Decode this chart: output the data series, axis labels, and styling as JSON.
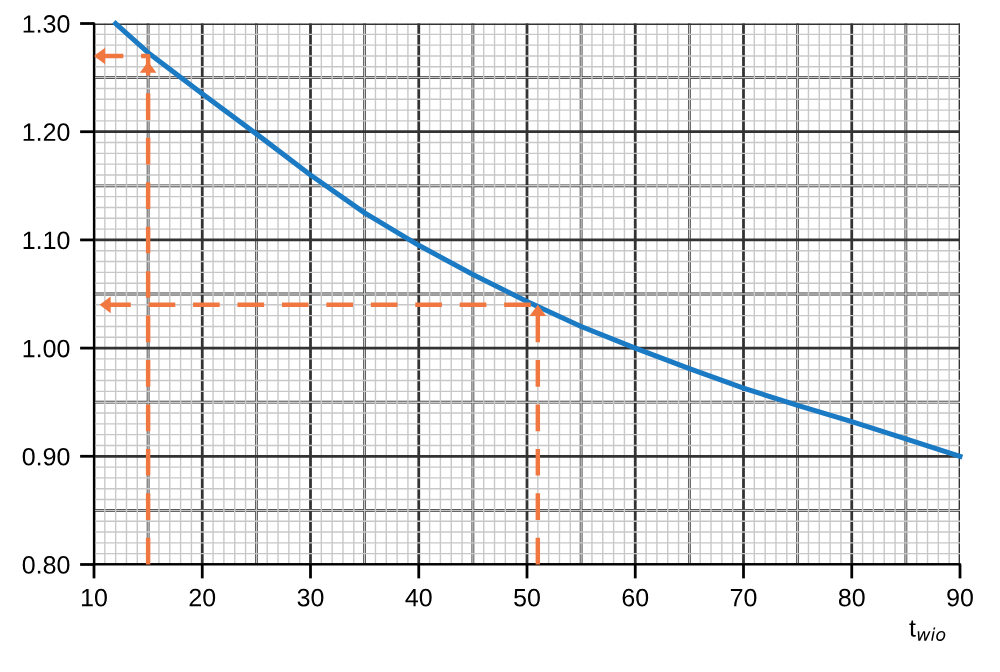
{
  "chart_data": {
    "type": "line",
    "xlabel": "t$_{wio}$",
    "x": [
      12,
      15,
      20,
      25,
      30,
      35,
      40,
      45,
      50,
      55,
      60,
      65,
      70,
      75,
      80,
      85,
      90
    ],
    "series": [
      {
        "color": "#1a7ac4",
        "line_style": "solid",
        "values": [
          1.3,
          1.273,
          1.235,
          1.198,
          1.16,
          1.125,
          1.095,
          1.068,
          1.043,
          1.02,
          1.0,
          0.981,
          0.963,
          0.947,
          0.932,
          0.916,
          0.9
        ]
      },
      {
        "color": "#f07840",
        "line_style": "dashed",
        "x": [
          15,
          15,
          10
        ],
        "values": [
          0.8,
          1.27,
          1.27
        ]
      },
      {
        "color": "#f07840",
        "line_style": "dashed",
        "x": [
          51,
          51,
          10
        ],
        "values": [
          0.8,
          1.04,
          1.04
        ]
      }
    ],
    "xlim": [
      10,
      90
    ],
    "ylim": [
      0.8,
      1.3
    ],
    "xticks": [
      10,
      20,
      30,
      40,
      50,
      60,
      70,
      80,
      90
    ],
    "yticks": [
      {
        "value": 0.8,
        "label": "0.80"
      },
      {
        "value": 0.9,
        "label": "0.90"
      },
      {
        "value": 1.0,
        "label": "1.00"
      },
      {
        "value": 1.1,
        "label": "1.10"
      },
      {
        "value": 1.2,
        "label": "1.20"
      },
      {
        "value": 1.3,
        "label": "1.30"
      }
    ],
    "grid": true,
    "legend": false,
    "marker": "none"
  }
}
